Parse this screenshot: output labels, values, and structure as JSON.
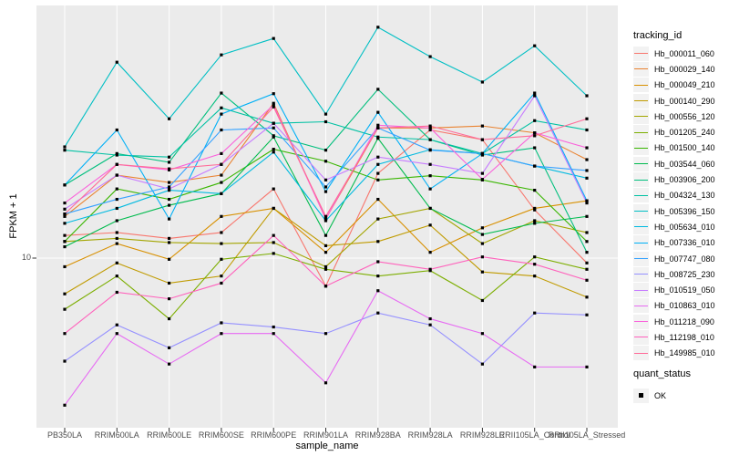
{
  "figure": {
    "bg": "#FFFFFF",
    "panel_bg": "#EBEBEB",
    "grid_color": "#FFFFFF",
    "tick_color": "#333333",
    "tick_label_color": "#4D4D4D",
    "text_color": "#000000"
  },
  "axes": {
    "x": {
      "title": "sample_name",
      "categories": [
        "PB350LA",
        "RRIM600LA",
        "RRIM600LE",
        "RRIM600SE",
        "RRIM600PE",
        "RRIM901LA",
        "RRIM928BA",
        "RRIM928LA",
        "RRIM928LE",
        "RRII105LA_Control",
        "RRII105LA_Stressed"
      ]
    },
    "y": {
      "title": "FPKM + 1",
      "scale": "log10",
      "tick_labels": [
        "10"
      ],
      "tick_values": [
        10
      ]
    }
  },
  "legend": {
    "tracking_title": "tracking_id",
    "quant_title": "quant_status",
    "quant_items": [
      {
        "label": "OK",
        "marker": "black-square"
      }
    ],
    "position": "right",
    "key_bg": "#F2F2F2"
  },
  "chart_data": {
    "type": "line",
    "x_categories": [
      "PB350LA",
      "RRIM600LA",
      "RRIM600LE",
      "RRIM600SE",
      "RRIM600PE",
      "RRIM901LA",
      "RRIM928BA",
      "RRIM928LA",
      "RRIM928LE",
      "RRII105LA_Control",
      "RRII105LA_Stressed"
    ],
    "xlabel": "sample_name",
    "ylabel": "FPKM + 1",
    "y_scale": "log10",
    "ylim": [
      2.4,
      84
    ],
    "grid": "major",
    "legend_position": "right",
    "marker": {
      "shape": "square",
      "color": "#000000"
    },
    "series": [
      {
        "name": "Hb_000011_060",
        "color": "#F8766D",
        "values": [
          12.1,
          12.4,
          11.8,
          12.4,
          17.9,
          7.9,
          20.4,
          29.4,
          27.1,
          15.0,
          9.6
        ]
      },
      {
        "name": "Hb_000029_140",
        "color": "#EA8331",
        "values": [
          14.2,
          20.1,
          18.9,
          20.1,
          36.8,
          13.9,
          29.9,
          29.9,
          30.4,
          28.7,
          22.9
        ]
      },
      {
        "name": "Hb_000049_210",
        "color": "#D89000",
        "values": [
          9.3,
          11.3,
          9.9,
          14.2,
          15.2,
          10.5,
          16.4,
          10.5,
          12.9,
          15.2,
          16.2
        ]
      },
      {
        "name": "Hb_000140_290",
        "color": "#C09B00",
        "values": [
          7.4,
          9.6,
          8.1,
          8.6,
          15.2,
          11.1,
          11.5,
          13.2,
          8.9,
          8.6,
          7.2
        ]
      },
      {
        "name": "Hb_000556_120",
        "color": "#A3A500",
        "values": [
          11.5,
          11.8,
          11.4,
          11.3,
          11.4,
          9.3,
          13.9,
          15.2,
          11.3,
          13.7,
          12.4
        ]
      },
      {
        "name": "Hb_001205_240",
        "color": "#7CAE00",
        "values": [
          6.5,
          8.6,
          6.0,
          9.9,
          10.4,
          9.1,
          8.6,
          9.0,
          7.0,
          10.1,
          9.1
        ]
      },
      {
        "name": "Hb_001500_140",
        "color": "#39B600",
        "values": [
          11.5,
          17.9,
          16.4,
          18.9,
          25.0,
          22.6,
          19.3,
          20.0,
          19.3,
          17.7,
          11.5
        ]
      },
      {
        "name": "Hb_003544_060",
        "color": "#00BB4E",
        "values": [
          11.0,
          13.7,
          15.6,
          17.2,
          27.7,
          12.1,
          27.4,
          15.2,
          12.2,
          13.4,
          14.2
        ]
      },
      {
        "name": "Hb_003906_200",
        "color": "#00BF7D",
        "values": [
          18.5,
          24.1,
          22.4,
          40.1,
          28.0,
          24.8,
          41.4,
          27.1,
          23.8,
          25.3,
          10.5
        ]
      },
      {
        "name": "Hb_004324_130",
        "color": "#00C1A3",
        "values": [
          24.8,
          23.8,
          23.4,
          35.4,
          31.1,
          31.5,
          27.7,
          27.1,
          24.1,
          31.8,
          29.4
        ]
      },
      {
        "name": "Hb_005396_150",
        "color": "#00BFC4",
        "values": [
          25.5,
          52.0,
          32.3,
          55.3,
          63.5,
          33.6,
          69.8,
          54.5,
          44.0,
          59.7,
          39.2
        ]
      },
      {
        "name": "Hb_005634_010",
        "color": "#00BAE0",
        "values": [
          13.4,
          15.2,
          17.7,
          17.2,
          24.4,
          13.7,
          22.0,
          24.9,
          24.1,
          21.7,
          19.6
        ]
      },
      {
        "name": "Hb_007336_010",
        "color": "#00B0F6",
        "values": [
          18.5,
          29.4,
          13.9,
          33.6,
          39.9,
          17.5,
          34.1,
          17.9,
          24.1,
          40.1,
          16.2
        ]
      },
      {
        "name": "Hb_007747_080",
        "color": "#35A2FF",
        "values": [
          14.5,
          16.4,
          18.2,
          29.4,
          29.9,
          18.2,
          29.9,
          24.8,
          24.1,
          21.7,
          20.9
        ]
      },
      {
        "name": "Hb_008725_230",
        "color": "#9590FF",
        "values": [
          4.2,
          5.7,
          4.7,
          5.8,
          5.6,
          5.3,
          6.3,
          5.7,
          4.1,
          6.3,
          6.2
        ]
      },
      {
        "name": "Hb_010519_050",
        "color": "#C77CFF",
        "values": [
          15.1,
          20.1,
          17.9,
          22.0,
          31.1,
          19.3,
          23.4,
          22.0,
          20.4,
          39.2,
          15.9
        ]
      },
      {
        "name": "Hb_010863_010",
        "color": "#E76BF3",
        "values": [
          2.9,
          5.3,
          4.1,
          5.3,
          5.3,
          3.5,
          7.6,
          6.0,
          5.3,
          4.0,
          4.0
        ]
      },
      {
        "name": "Hb_011218_090",
        "color": "#FA62DB",
        "values": [
          15.9,
          22.0,
          21.0,
          24.1,
          36.3,
          13.9,
          30.6,
          29.9,
          19.4,
          28.7,
          25.3
        ]
      },
      {
        "name": "Hb_112198_010",
        "color": "#FF62BC",
        "values": [
          5.3,
          7.5,
          7.1,
          8.1,
          12.1,
          7.9,
          9.7,
          9.1,
          10.1,
          9.5,
          8.3
        ]
      },
      {
        "name": "Hb_149985_010",
        "color": "#FF6A98",
        "values": [
          14.5,
          22.0,
          21.2,
          22.0,
          35.7,
          14.2,
          29.9,
          30.4,
          27.1,
          28.0,
          32.3
        ]
      }
    ]
  }
}
